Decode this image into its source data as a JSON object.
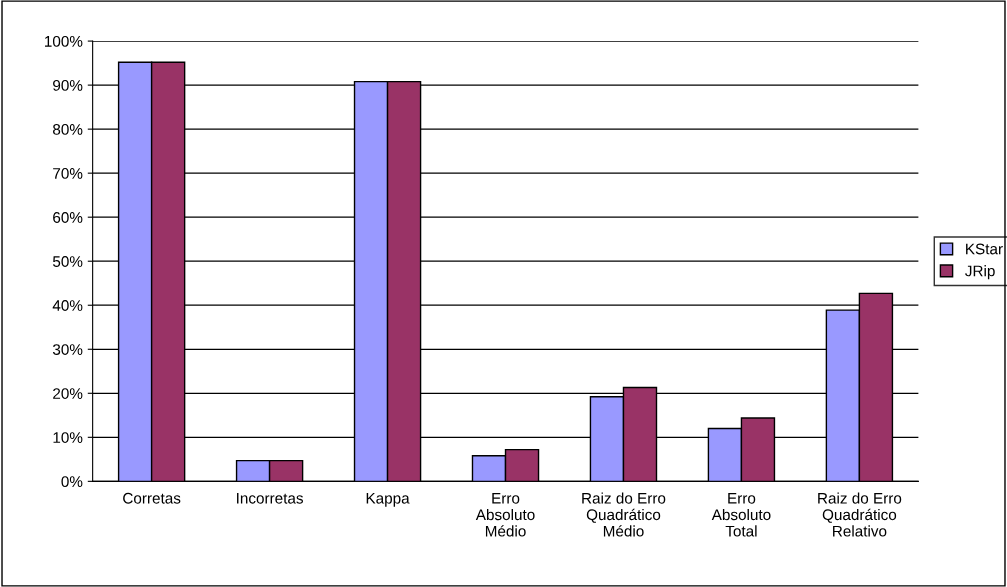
{
  "chart_data": {
    "type": "bar",
    "categories": [
      "Corretas",
      "Incorretas",
      "Kappa",
      "Erro\nAbsoluto\nMédio",
      "Raiz do Erro\nQuadrático\nMédio",
      "Erro\nAbsoluto\nTotal",
      "Raiz do Erro\nQuadrático\nRelativo"
    ],
    "series": [
      {
        "name": "KStar",
        "color": "#9999ff",
        "values": [
          95.2,
          4.7,
          90.8,
          5.8,
          19.2,
          12.0,
          38.9
        ]
      },
      {
        "name": "JRip",
        "color": "#993366",
        "values": [
          95.2,
          4.7,
          90.8,
          7.2,
          21.3,
          14.4,
          42.7
        ]
      }
    ],
    "ylim": [
      0,
      100
    ],
    "yticks": [
      {
        "value": 0,
        "label": "0%"
      },
      {
        "value": 10,
        "label": "10%"
      },
      {
        "value": 20,
        "label": "20%"
      },
      {
        "value": 30,
        "label": "30%"
      },
      {
        "value": 40,
        "label": "40%"
      },
      {
        "value": 50,
        "label": "50%"
      },
      {
        "value": 60,
        "label": "60%"
      },
      {
        "value": 70,
        "label": "70%"
      },
      {
        "value": 80,
        "label": "80%"
      },
      {
        "value": 90,
        "label": "90%"
      },
      {
        "value": 100,
        "label": "100%"
      }
    ],
    "grid": "y",
    "legend": "right"
  }
}
